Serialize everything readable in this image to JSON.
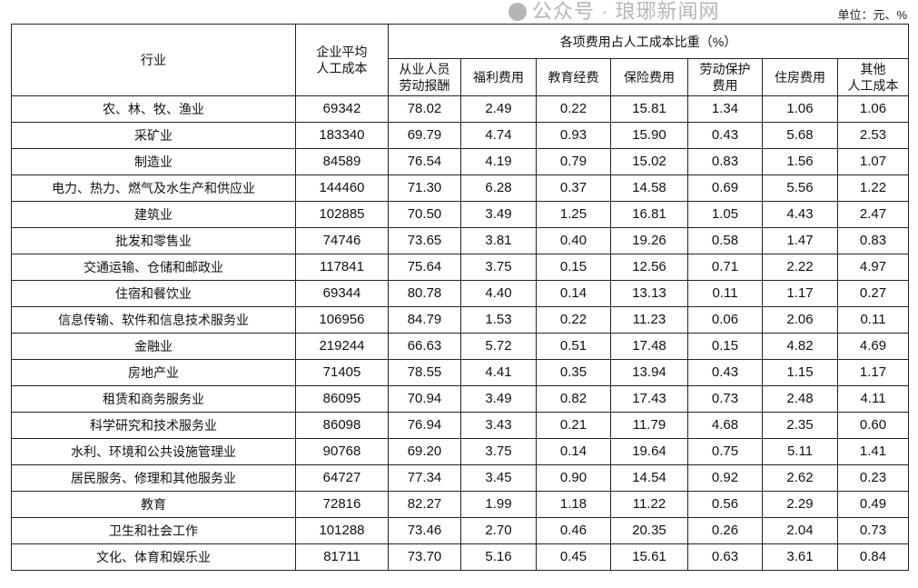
{
  "unit": "单位：元、%",
  "header": {
    "industry": "行业",
    "avg_cost": "企业平均\n人工成本",
    "group": "各项费用占人工成本比重（%）",
    "columns": [
      "从业人员\n劳动报酬",
      "福利费用",
      "教育经费",
      "保险费用",
      "劳动保护\n费用",
      "住房费用",
      "其他\n人工成本"
    ]
  },
  "rows": [
    [
      "农、林、牧、渔业",
      "69342",
      "78.02",
      "2.49",
      "0.22",
      "15.81",
      "1.34",
      "1.06",
      "1.06"
    ],
    [
      "采矿业",
      "183340",
      "69.79",
      "4.74",
      "0.93",
      "15.90",
      "0.43",
      "5.68",
      "2.53"
    ],
    [
      "制造业",
      "84589",
      "76.54",
      "4.19",
      "0.79",
      "15.02",
      "0.83",
      "1.56",
      "1.07"
    ],
    [
      "电力、热力、燃气及水生产和供应业",
      "144460",
      "71.30",
      "6.28",
      "0.37",
      "14.58",
      "0.69",
      "5.56",
      "1.22"
    ],
    [
      "建筑业",
      "102885",
      "70.50",
      "3.49",
      "1.25",
      "16.81",
      "1.05",
      "4.43",
      "2.47"
    ],
    [
      "批发和零售业",
      "74746",
      "73.65",
      "3.81",
      "0.40",
      "19.26",
      "0.58",
      "1.47",
      "0.83"
    ],
    [
      "交通运输、仓储和邮政业",
      "117841",
      "75.64",
      "3.75",
      "0.15",
      "12.56",
      "0.71",
      "2.22",
      "4.97"
    ],
    [
      "住宿和餐饮业",
      "69344",
      "80.78",
      "4.40",
      "0.14",
      "13.13",
      "0.11",
      "1.17",
      "0.27"
    ],
    [
      "信息传输、软件和信息技术服务业",
      "106956",
      "84.79",
      "1.53",
      "0.22",
      "11.23",
      "0.06",
      "2.06",
      "0.11"
    ],
    [
      "金融业",
      "219244",
      "66.63",
      "5.72",
      "0.51",
      "17.48",
      "0.15",
      "4.82",
      "4.69"
    ],
    [
      "房地产业",
      "71405",
      "78.55",
      "4.41",
      "0.35",
      "13.94",
      "0.43",
      "1.15",
      "1.17"
    ],
    [
      "租赁和商务服务业",
      "86095",
      "70.94",
      "3.49",
      "0.82",
      "17.43",
      "0.73",
      "2.48",
      "4.11"
    ],
    [
      "科学研究和技术服务业",
      "86098",
      "76.94",
      "3.43",
      "0.21",
      "11.79",
      "4.68",
      "2.35",
      "0.60"
    ],
    [
      "水利、环境和公共设施管理业",
      "90768",
      "69.20",
      "3.75",
      "0.14",
      "19.64",
      "0.75",
      "5.11",
      "1.41"
    ],
    [
      "居民服务、修理和其他服务业",
      "64727",
      "77.34",
      "3.45",
      "0.90",
      "14.54",
      "0.92",
      "2.62",
      "0.23"
    ],
    [
      "教育",
      "72816",
      "82.27",
      "1.99",
      "1.18",
      "11.22",
      "0.56",
      "2.29",
      "0.49"
    ],
    [
      "卫生和社会工作",
      "101288",
      "73.46",
      "2.70",
      "0.46",
      "20.35",
      "0.26",
      "2.04",
      "0.73"
    ],
    [
      "文化、体育和娱乐业",
      "81711",
      "73.70",
      "5.16",
      "0.45",
      "15.61",
      "0.63",
      "3.61",
      "0.84"
    ]
  ],
  "watermark": "公众号 · 琅琊新闻网"
}
